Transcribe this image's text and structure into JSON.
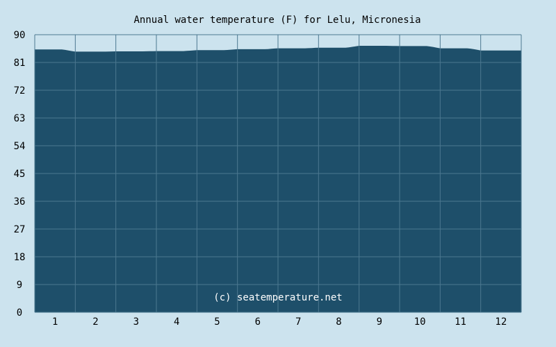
{
  "chart_data": {
    "type": "area",
    "title": "Annual water temperature (F) for Lelu, Micronesia",
    "xlabel": "",
    "ylabel": "",
    "unit": "F",
    "ylim": [
      0,
      90
    ],
    "y_ticks": [
      "0",
      "9",
      "18",
      "27",
      "36",
      "45",
      "54",
      "63",
      "72",
      "81",
      "90"
    ],
    "categories": [
      "1",
      "2",
      "3",
      "4",
      "5",
      "6",
      "7",
      "8",
      "9",
      "10",
      "11",
      "12"
    ],
    "series": [
      {
        "values": [
          85.2,
          84.5,
          84.6,
          84.7,
          85.0,
          85.3,
          85.6,
          85.8,
          86.4,
          86.3,
          85.6,
          84.9
        ]
      }
    ],
    "grid": true,
    "legend": "none",
    "annotation": "(c) seatemperature.net",
    "colors": {
      "background": "#cce3ee",
      "fill": "#1e4f6a",
      "grid": "#4c7890",
      "text": "#000000",
      "watermark": "#ffffff"
    }
  }
}
